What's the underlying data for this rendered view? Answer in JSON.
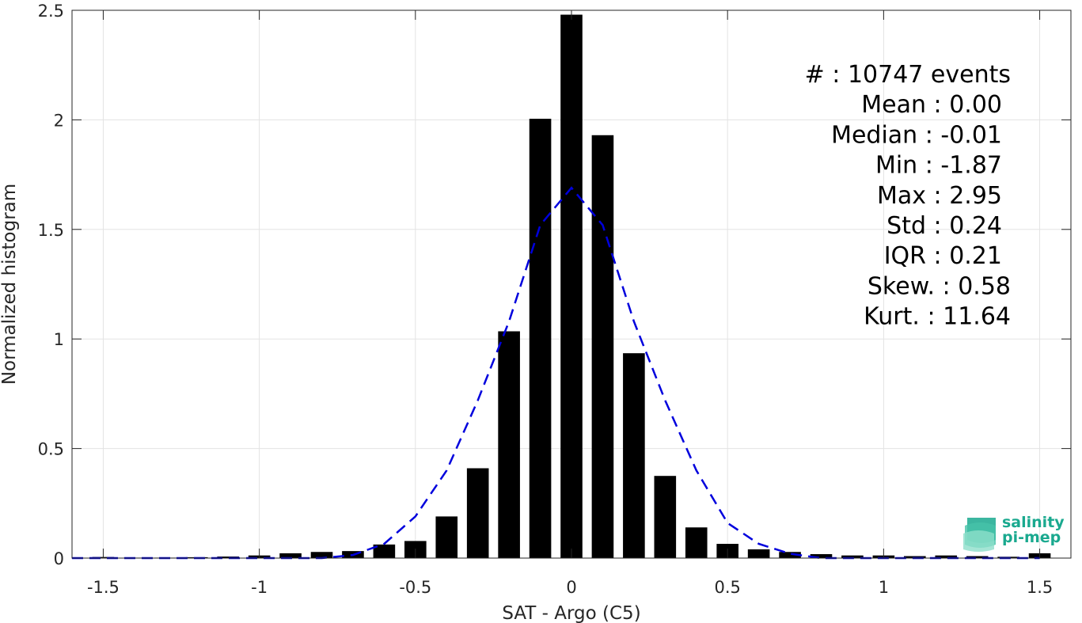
{
  "chart_data": {
    "type": "bar",
    "title": "",
    "xlabel": "SAT - Argo (C5)",
    "ylabel": "Normalized histogram",
    "xlim": [
      -1.6,
      1.6
    ],
    "ylim": [
      0,
      2.5
    ],
    "xticks": [
      -1.5,
      -1,
      -0.5,
      0,
      0.5,
      1,
      1.5
    ],
    "xtick_labels": [
      "-1.5",
      "-1",
      "-0.5",
      "0",
      "0.5",
      "1",
      "1.5"
    ],
    "yticks": [
      0,
      0.5,
      1,
      1.5,
      2,
      2.5
    ],
    "ytick_labels": [
      "0",
      "0.5",
      "1",
      "1.5",
      "2",
      "2.5"
    ],
    "grid": true,
    "bar_color": "#000000",
    "bar_width": 0.07,
    "bars": {
      "x": [
        -1.5,
        -1.4,
        -1.3,
        -1.2,
        -1.1,
        -1.0,
        -0.9,
        -0.8,
        -0.7,
        -0.6,
        -0.5,
        -0.4,
        -0.3,
        -0.2,
        -0.1,
        0.0,
        0.1,
        0.2,
        0.3,
        0.4,
        0.5,
        0.6,
        0.7,
        0.8,
        0.9,
        1.0,
        1.1,
        1.2,
        1.3,
        1.4,
        1.5
      ],
      "values": [
        0.005,
        0.002,
        0.002,
        0.004,
        0.007,
        0.012,
        0.022,
        0.028,
        0.032,
        0.062,
        0.078,
        0.19,
        0.41,
        1.035,
        2.005,
        2.48,
        1.93,
        0.935,
        0.375,
        0.14,
        0.065,
        0.04,
        0.028,
        0.018,
        0.012,
        0.012,
        0.009,
        0.012,
        0.009,
        0.006,
        0.022
      ]
    },
    "fit_curve": {
      "style": "dashed",
      "color": "#0000dd",
      "x": [
        -1.6,
        -1.5,
        -1.4,
        -1.3,
        -1.2,
        -1.1,
        -1.0,
        -0.9,
        -0.8,
        -0.7,
        -0.6,
        -0.5,
        -0.4,
        -0.3,
        -0.2,
        -0.1,
        0.0,
        0.1,
        0.2,
        0.3,
        0.4,
        0.5,
        0.6,
        0.7,
        0.8,
        0.9,
        1.0,
        1.1,
        1.2,
        1.3,
        1.4,
        1.5
      ],
      "values": [
        0.0,
        0.0,
        0.0,
        0.0,
        0.0,
        0.0,
        0.0,
        0.0,
        0.0,
        0.014,
        0.065,
        0.19,
        0.4,
        0.72,
        1.08,
        1.52,
        1.69,
        1.52,
        1.08,
        0.72,
        0.4,
        0.16,
        0.065,
        0.02,
        0.0,
        0.0,
        0.0,
        0.0,
        0.0,
        0.0,
        0.0,
        0.0
      ]
    },
    "stats": [
      "#  : 10747 events",
      "Mean : 0.00",
      "Median : -0.01",
      "Min : -1.87",
      "Max : 2.95",
      "Std : 0.24",
      "IQR : 0.21",
      "Skew. : 0.58",
      "Kurt. : 11.64"
    ]
  },
  "logo": {
    "line1": "salinity",
    "line2": "pi-mep"
  }
}
